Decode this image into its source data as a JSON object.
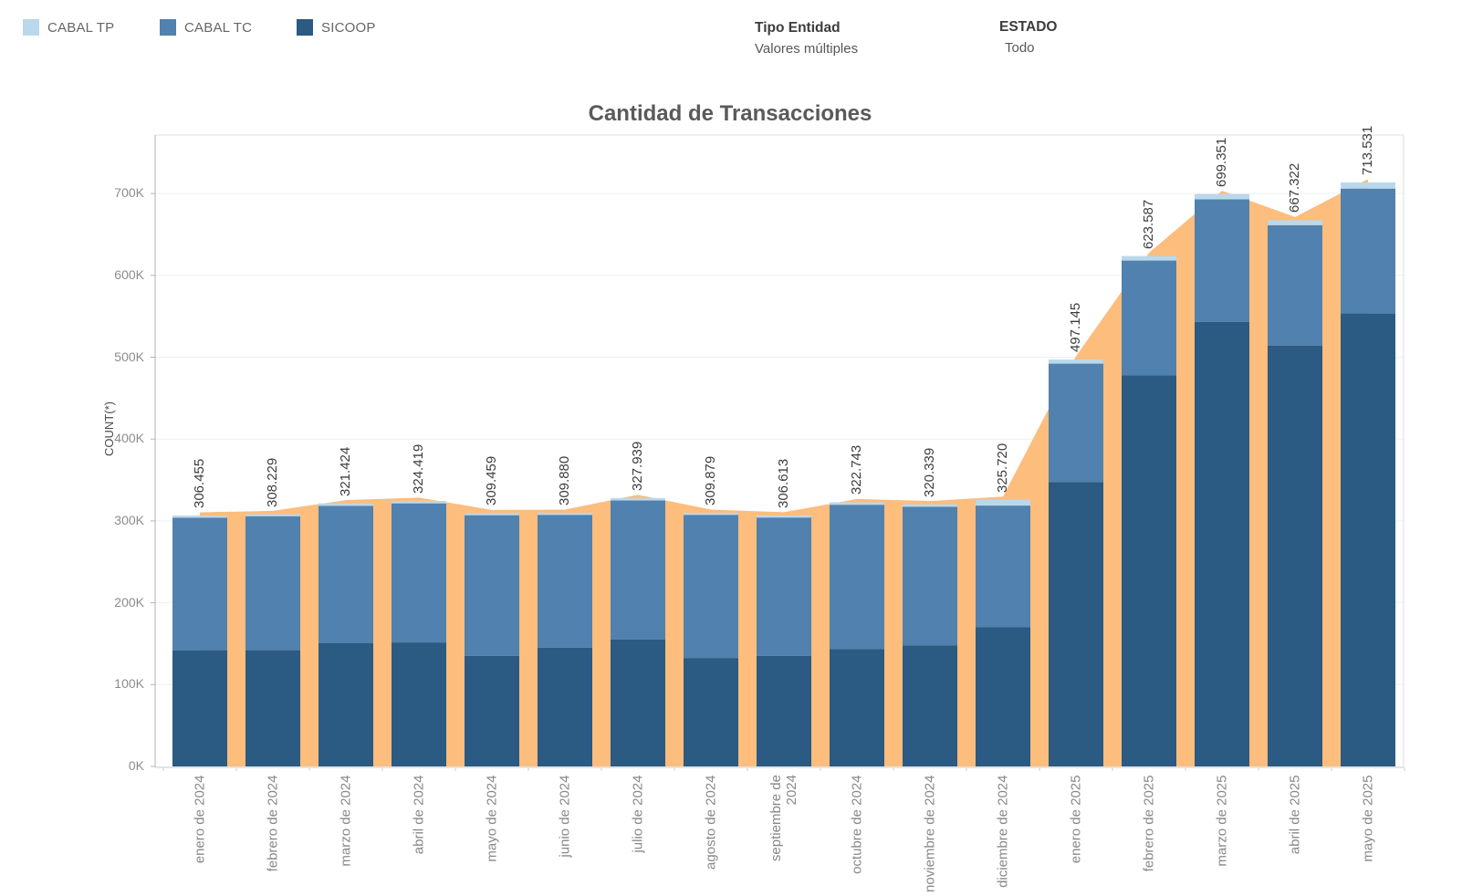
{
  "legend": {
    "items": [
      {
        "label": "CABAL TP",
        "color": "#b9d8ec"
      },
      {
        "label": "CABAL TC",
        "color": "#5181ae"
      },
      {
        "label": "SICOOP",
        "color": "#2b5a83"
      }
    ]
  },
  "filters": [
    {
      "label": "Tipo Entidad",
      "value": "Valores múltiples"
    },
    {
      "label": "ESTADO",
      "value": "Todo"
    }
  ],
  "chart_data": {
    "type": "bar",
    "stacked": true,
    "title": "Cantidad de Transacciones",
    "xlabel": "",
    "ylabel": "COUNT(*)",
    "categories": [
      "enero de 2024",
      "febrero de 2024",
      "marzo de 2024",
      "abril de 2024",
      "mayo de 2024",
      "junio de 2024",
      "julio de 2024",
      "agosto de 2024",
      "septiembre de 2024",
      "octubre de 2024",
      "noviembre de 2024",
      "diciembre de 2024",
      "enero de 2025",
      "febrero de 2025",
      "marzo de 2025",
      "abril de 2025",
      "mayo de 2025"
    ],
    "series": [
      {
        "name": "SICOOP",
        "color": "#2b5a83",
        "stack_position": "bottom",
        "values": [
          142000,
          142000,
          150500,
          151500,
          135000,
          145000,
          155000,
          132500,
          135000,
          143500,
          148000,
          170000,
          347500,
          478000,
          543000,
          514300,
          553400
        ]
      },
      {
        "name": "CABAL TC",
        "color": "#5181ae",
        "stack_position": "middle",
        "values": [
          161955,
          163729,
          167924,
          169919,
          171959,
          162380,
          169939,
          174879,
          169113,
          176243,
          169339,
          148720,
          144645,
          140087,
          149851,
          147022,
          152631
        ]
      },
      {
        "name": "CABAL TP",
        "color": "#b9d8ec",
        "stack_position": "top",
        "values": [
          2500,
          2500,
          3000,
          3000,
          2500,
          2500,
          3000,
          2500,
          2500,
          3000,
          3000,
          7000,
          5000,
          5500,
          6500,
          6000,
          7500
        ]
      }
    ],
    "totals": [
      306455,
      308229,
      321424,
      324419,
      309459,
      309880,
      327939,
      309879,
      306613,
      322743,
      320339,
      325720,
      497145,
      623587,
      699351,
      667322,
      713531
    ],
    "total_labels": [
      "306.455",
      "308.229",
      "321.424",
      "324.419",
      "309.459",
      "309.880",
      "327.939",
      "309.879",
      "306.613",
      "322.743",
      "320.339",
      "325.720",
      "497.145",
      "623.587",
      "699.351",
      "667.322",
      "713.531"
    ],
    "area_overlay": {
      "name": "total-area",
      "color": "#fdbd7d"
    },
    "y_ticks": [
      "0K",
      "100K",
      "200K",
      "300K",
      "400K",
      "500K",
      "600K",
      "700K"
    ],
    "y_tick_values": [
      0,
      100000,
      200000,
      300000,
      400000,
      500000,
      600000,
      700000
    ],
    "ylim": [
      0,
      771000
    ],
    "grid": "faint horizontal gridlines at each 100K",
    "legend_position": "top-left"
  }
}
